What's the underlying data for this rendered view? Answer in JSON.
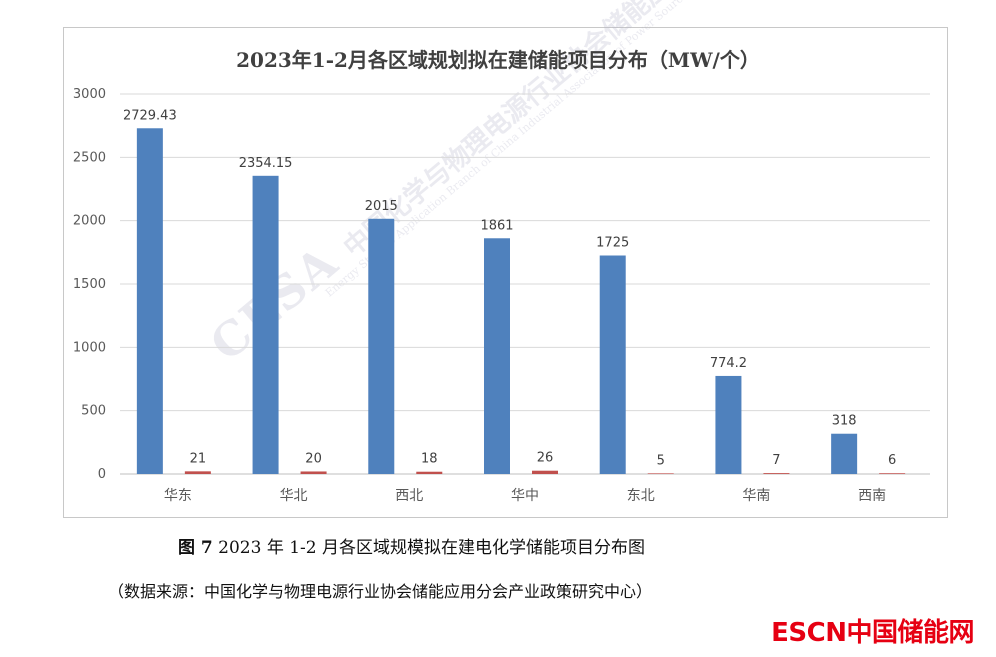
{
  "chart_data": {
    "type": "bar",
    "title": "2023年1-2月各区域规划拟在建储能项目分布（MW/个）",
    "categories": [
      "华东",
      "华北",
      "西北",
      "华中",
      "东北",
      "华南",
      "西南"
    ],
    "series": [
      {
        "values": [
          2729.43,
          2354.15,
          2015,
          1861,
          1725,
          774.2,
          318
        ],
        "color": "#4f81bd"
      },
      {
        "values": [
          21,
          20,
          18,
          26,
          5,
          7,
          6
        ],
        "color": "#c0504d"
      }
    ],
    "value_labels": [
      [
        "2729.43",
        "2354.15",
        "2015",
        "1861",
        "1725",
        "774.2",
        "318"
      ],
      [
        "21",
        "20",
        "18",
        "26",
        "5",
        "7",
        "6"
      ]
    ],
    "ylim": [
      0,
      3000
    ],
    "yticks": [
      0,
      500,
      1000,
      1500,
      2000,
      2500,
      3000
    ],
    "grid": true,
    "legend": "none"
  },
  "caption": {
    "prefix": "图 7",
    "text": " 2023 年 1-2 月各区域规模拟在建电化学储能项目分布图"
  },
  "source": "（数据来源：中国化学与物理电源行业协会储能应用分会产业政策研究中心）",
  "watermark": {
    "mark": "CESA",
    "name_cn": "中国化学与物理电源行业协会储能应用分会",
    "name_en": "Energy Storage Application Branch of China Industrial Association of Power Sources"
  },
  "logo": {
    "text_a": "ESCN",
    "text_b": "中国储能网",
    "color": "#e60012"
  }
}
